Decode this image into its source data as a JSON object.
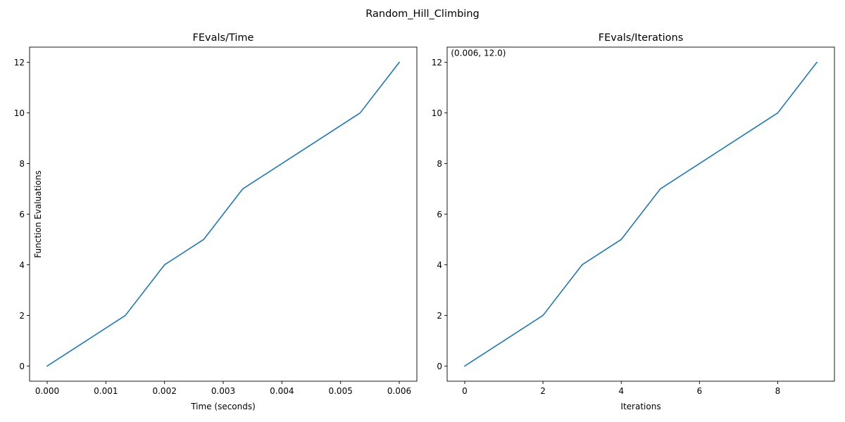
{
  "figure_title": "Random_Hill_Climbing",
  "chart_data": [
    {
      "type": "line",
      "title": "FEvals/Time",
      "xlabel": "Time (seconds)",
      "ylabel": "Function Evaluations",
      "xlim": [
        -0.0003,
        0.0063
      ],
      "ylim": [
        -0.6,
        12.6
      ],
      "xticks": [
        0.0,
        0.001,
        0.002,
        0.003,
        0.004,
        0.005,
        0.006
      ],
      "xtick_labels": [
        "0.000",
        "0.001",
        "0.002",
        "0.003",
        "0.004",
        "0.005",
        "0.006"
      ],
      "yticks": [
        0,
        2,
        4,
        6,
        8,
        10,
        12
      ],
      "ytick_labels": [
        "0",
        "2",
        "4",
        "6",
        "8",
        "10",
        "12"
      ],
      "grid": false,
      "series": [
        {
          "color": "#1f77b4",
          "x": [
            0.0,
            0.000667,
            0.001333,
            0.002,
            0.002667,
            0.003333,
            0.004,
            0.004667,
            0.005333,
            0.006
          ],
          "y": [
            0,
            1,
            2,
            4,
            5,
            7,
            8,
            9,
            10,
            12
          ]
        }
      ],
      "annotations": []
    },
    {
      "type": "line",
      "title": "FEvals/Iterations",
      "xlabel": "Iterations",
      "ylabel": "",
      "xlim": [
        -0.45,
        9.45
      ],
      "ylim": [
        -0.6,
        12.6
      ],
      "xticks": [
        0,
        2,
        4,
        6,
        8
      ],
      "xtick_labels": [
        "0",
        "2",
        "4",
        "6",
        "8"
      ],
      "yticks": [
        0,
        2,
        4,
        6,
        8,
        10,
        12
      ],
      "ytick_labels": [
        "0",
        "2",
        "4",
        "6",
        "8",
        "10",
        "12"
      ],
      "grid": false,
      "series": [
        {
          "color": "#1f77b4",
          "x": [
            0,
            1,
            2,
            3,
            4,
            5,
            6,
            7,
            8,
            9
          ],
          "y": [
            0,
            1,
            2,
            4,
            5,
            7,
            8,
            9,
            10,
            12
          ]
        }
      ],
      "annotations": [
        {
          "text": "(0.006, 12.0)",
          "x": 0.006,
          "y": 12.0
        }
      ]
    }
  ]
}
